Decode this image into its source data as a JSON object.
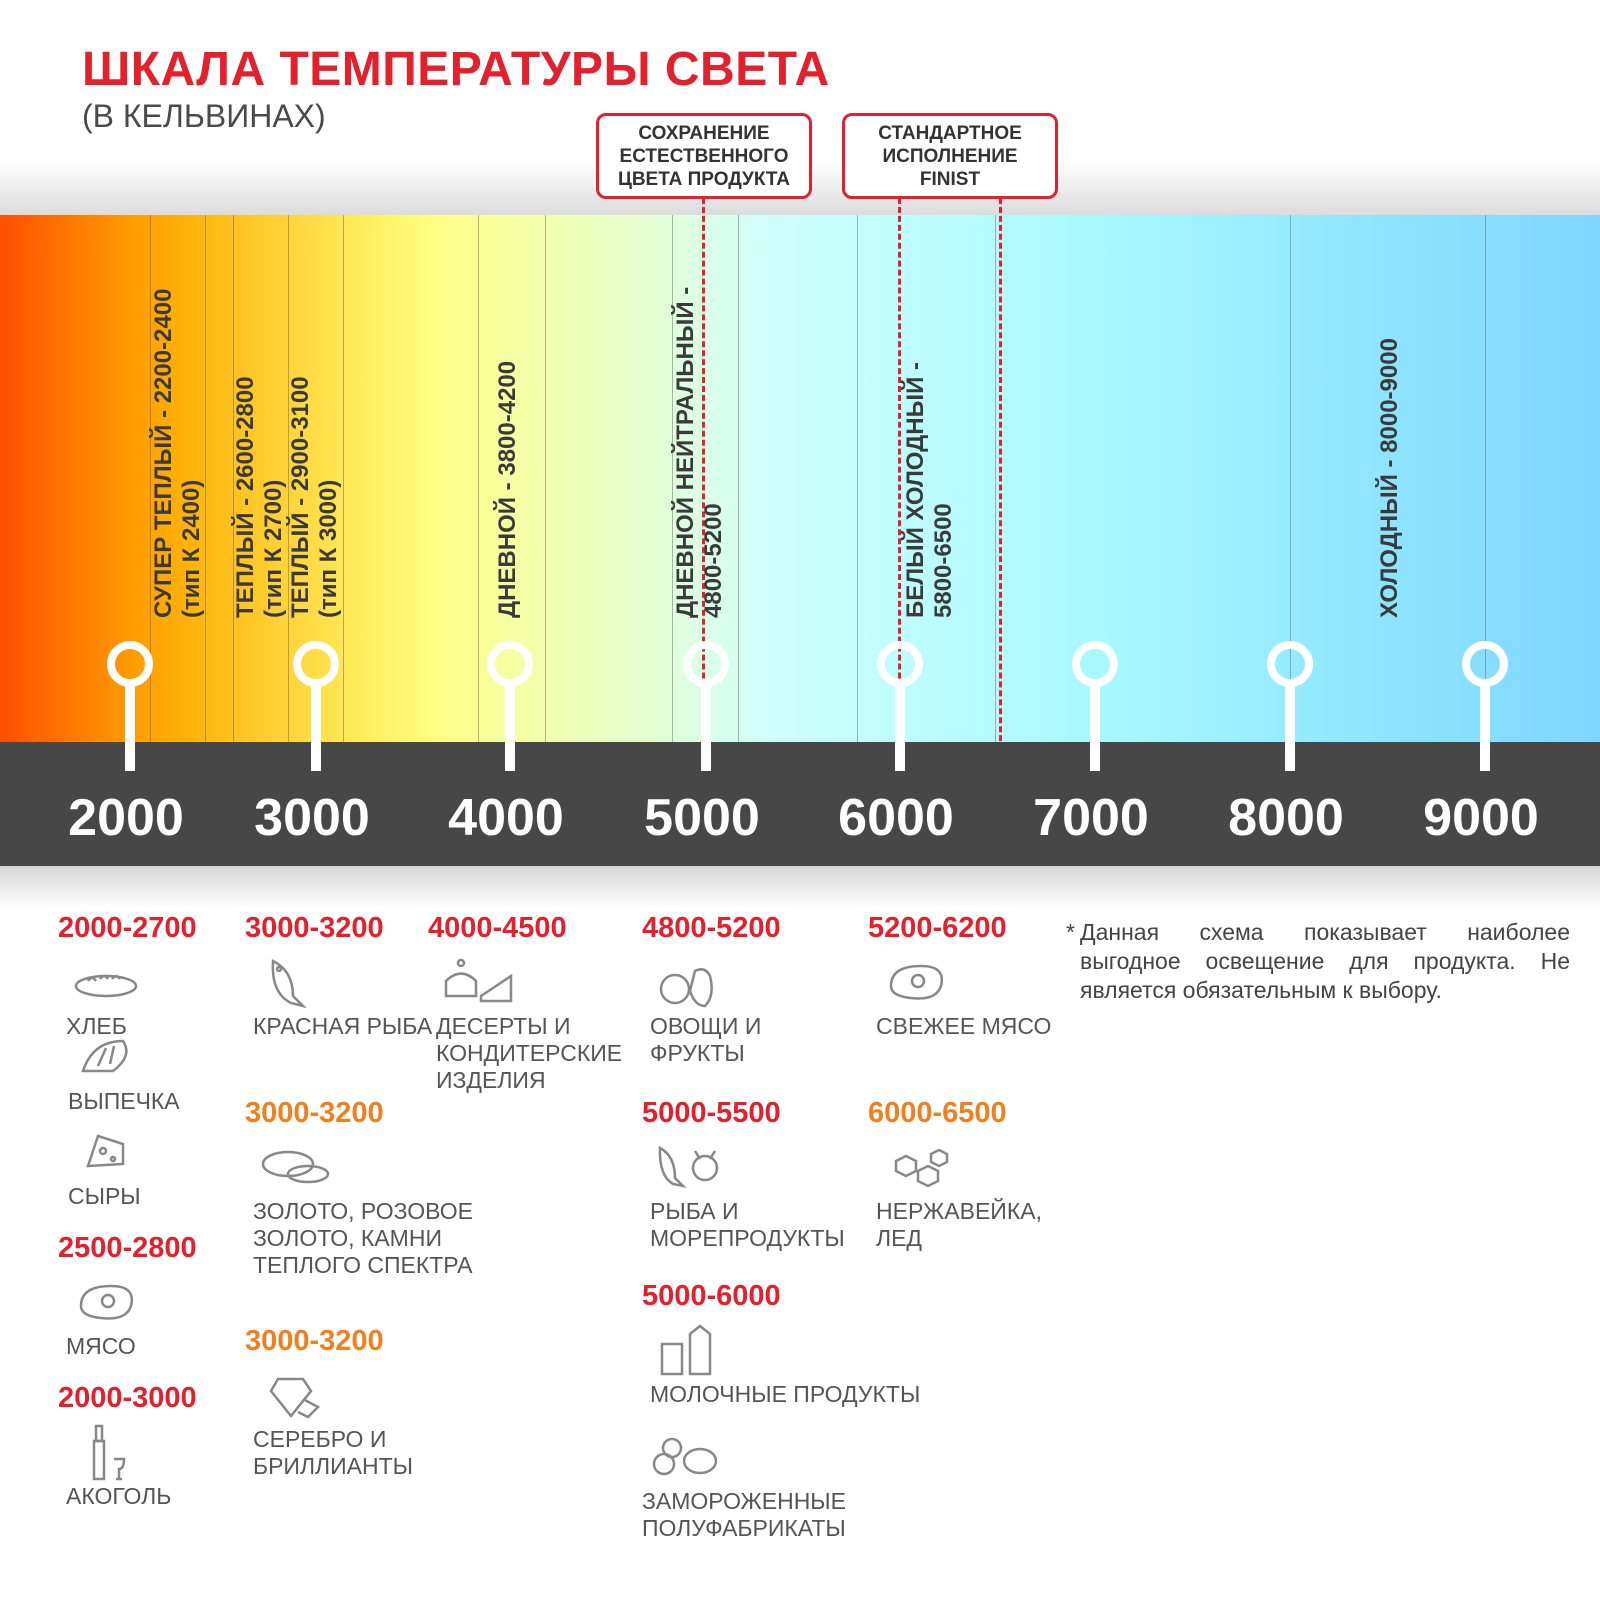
{
  "title": "ШКАЛА ТЕМПЕРАТУРЫ СВЕТА",
  "subtitle": "(В КЕЛЬВИНАХ)",
  "callouts": [
    {
      "lines": [
        "СОХРАНЕНИЕ",
        "ЕСТЕСТВЕННОГО",
        "ЦВЕТА ПРОДУКТА"
      ]
    },
    {
      "lines": [
        "СТАНДАРТНОЕ",
        "ИСПОЛНЕНИЕ",
        "FINIST"
      ]
    }
  ],
  "zones": [
    {
      "l1": "СУПЕР ТЕПЛЫЙ - 2200-2400",
      "l2": "(тип К 2400)"
    },
    {
      "l1": "ТЕПЛЫЙ - 2600-2800",
      "l2": "(тип К 2700)"
    },
    {
      "l1": "ТЕПЛЫЙ - 2900-3100",
      "l2": "(тип К 3000)"
    },
    {
      "l1": "ДНЕВНОЙ - 3800-4200",
      "l2": ""
    },
    {
      "l1": "ДНЕВНОЙ НЕЙТРАЛЬНЫЙ -",
      "l2": "4800-5200"
    },
    {
      "l1": "БЕЛЫЙ ХОЛОДНЫЙ -",
      "l2": "5800-6500"
    },
    {
      "l1": "ХОЛОДНЫЙ - 8000-9000",
      "l2": ""
    }
  ],
  "scale_ticks": [
    "2000",
    "3000",
    "4000",
    "5000",
    "6000",
    "7000",
    "8000",
    "9000"
  ],
  "colors": {
    "accent_red": "#e3202b",
    "accent_orange": "#f0801e",
    "bar": "#474747"
  },
  "products": [
    {
      "range": "2000-2700",
      "color": "red",
      "icon": "bread-icon",
      "label": "ХЛЕБ"
    },
    {
      "range": "",
      "icon": "croissant-icon",
      "label": "ВЫПЕЧКА"
    },
    {
      "range": "",
      "icon": "cheese-icon",
      "label": "СЫРЫ"
    },
    {
      "range": "2500-2800",
      "color": "red",
      "icon": "meat-icon",
      "label": "МЯСО"
    },
    {
      "range": "2000-3000",
      "color": "red",
      "icon": "bottle-icon",
      "label": "АКОГОЛЬ"
    },
    {
      "range": "3000-3200",
      "color": "red",
      "icon": "fish-icon",
      "label": "КРАСНАЯ РЫБА"
    },
    {
      "range": "3000-3200",
      "color": "orange",
      "icon": "rings-icon",
      "label": "ЗОЛОТО, РОЗОВОЕ ЗОЛОТО, КАМНИ ТЕПЛОГО СПЕКТРА"
    },
    {
      "range": "3000-3200",
      "color": "orange",
      "icon": "diamond-icon",
      "label": "СЕРЕБРО И БРИЛЛИАНТЫ"
    },
    {
      "range": "4000-4500",
      "color": "red",
      "icon": "dessert-icon",
      "label": "ДЕСЕРТЫ И КОНДИТЕРСКИЕ ИЗДЕЛИЯ"
    },
    {
      "range": "4800-5200",
      "color": "red",
      "icon": "vegetables-icon",
      "label": "ОВОЩИ И ФРУКТЫ"
    },
    {
      "range": "5000-5500",
      "color": "red",
      "icon": "seafood-icon",
      "label": "РЫБА И МОРЕПРОДУКТЫ"
    },
    {
      "range": "5000-6000",
      "color": "red",
      "icon": "milk-icon",
      "label": "МОЛОЧНЫЕ ПРОДУКТЫ"
    },
    {
      "range": "",
      "icon": "frozen-icon",
      "label": "ЗАМОРОЖЕННЫЕ ПОЛУФАБРИКАТЫ"
    },
    {
      "range": "5200-6200",
      "color": "red",
      "icon": "steak-icon",
      "label": "СВЕЖЕЕ МЯСО"
    },
    {
      "range": "6000-6500",
      "color": "orange",
      "icon": "ice-icon",
      "label": "НЕРЖАВЕЙКА, ЛЕД"
    }
  ],
  "note": {
    "star": "*",
    "text": "Данная схема показывает наиболее выгодное освещение для продукта. Не является обязательным к выбору."
  }
}
